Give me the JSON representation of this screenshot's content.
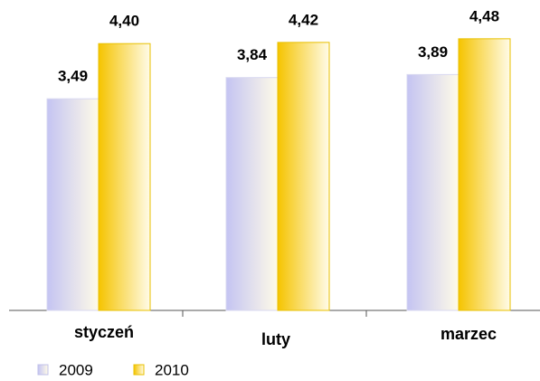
{
  "chart_data": {
    "type": "bar",
    "categories": [
      "styczeń",
      "luty",
      "marzec"
    ],
    "series": [
      {
        "name": "2009",
        "color": "#c4c4f2",
        "values": [
          3.49,
          3.84,
          3.89
        ],
        "value_labels": [
          "3,49",
          "3,84",
          "3,89"
        ]
      },
      {
        "name": "2010",
        "color": "#f5c400",
        "values": [
          4.4,
          4.42,
          4.48
        ],
        "value_labels": [
          "4,40",
          "4,42",
          "4,48"
        ]
      }
    ]
  }
}
